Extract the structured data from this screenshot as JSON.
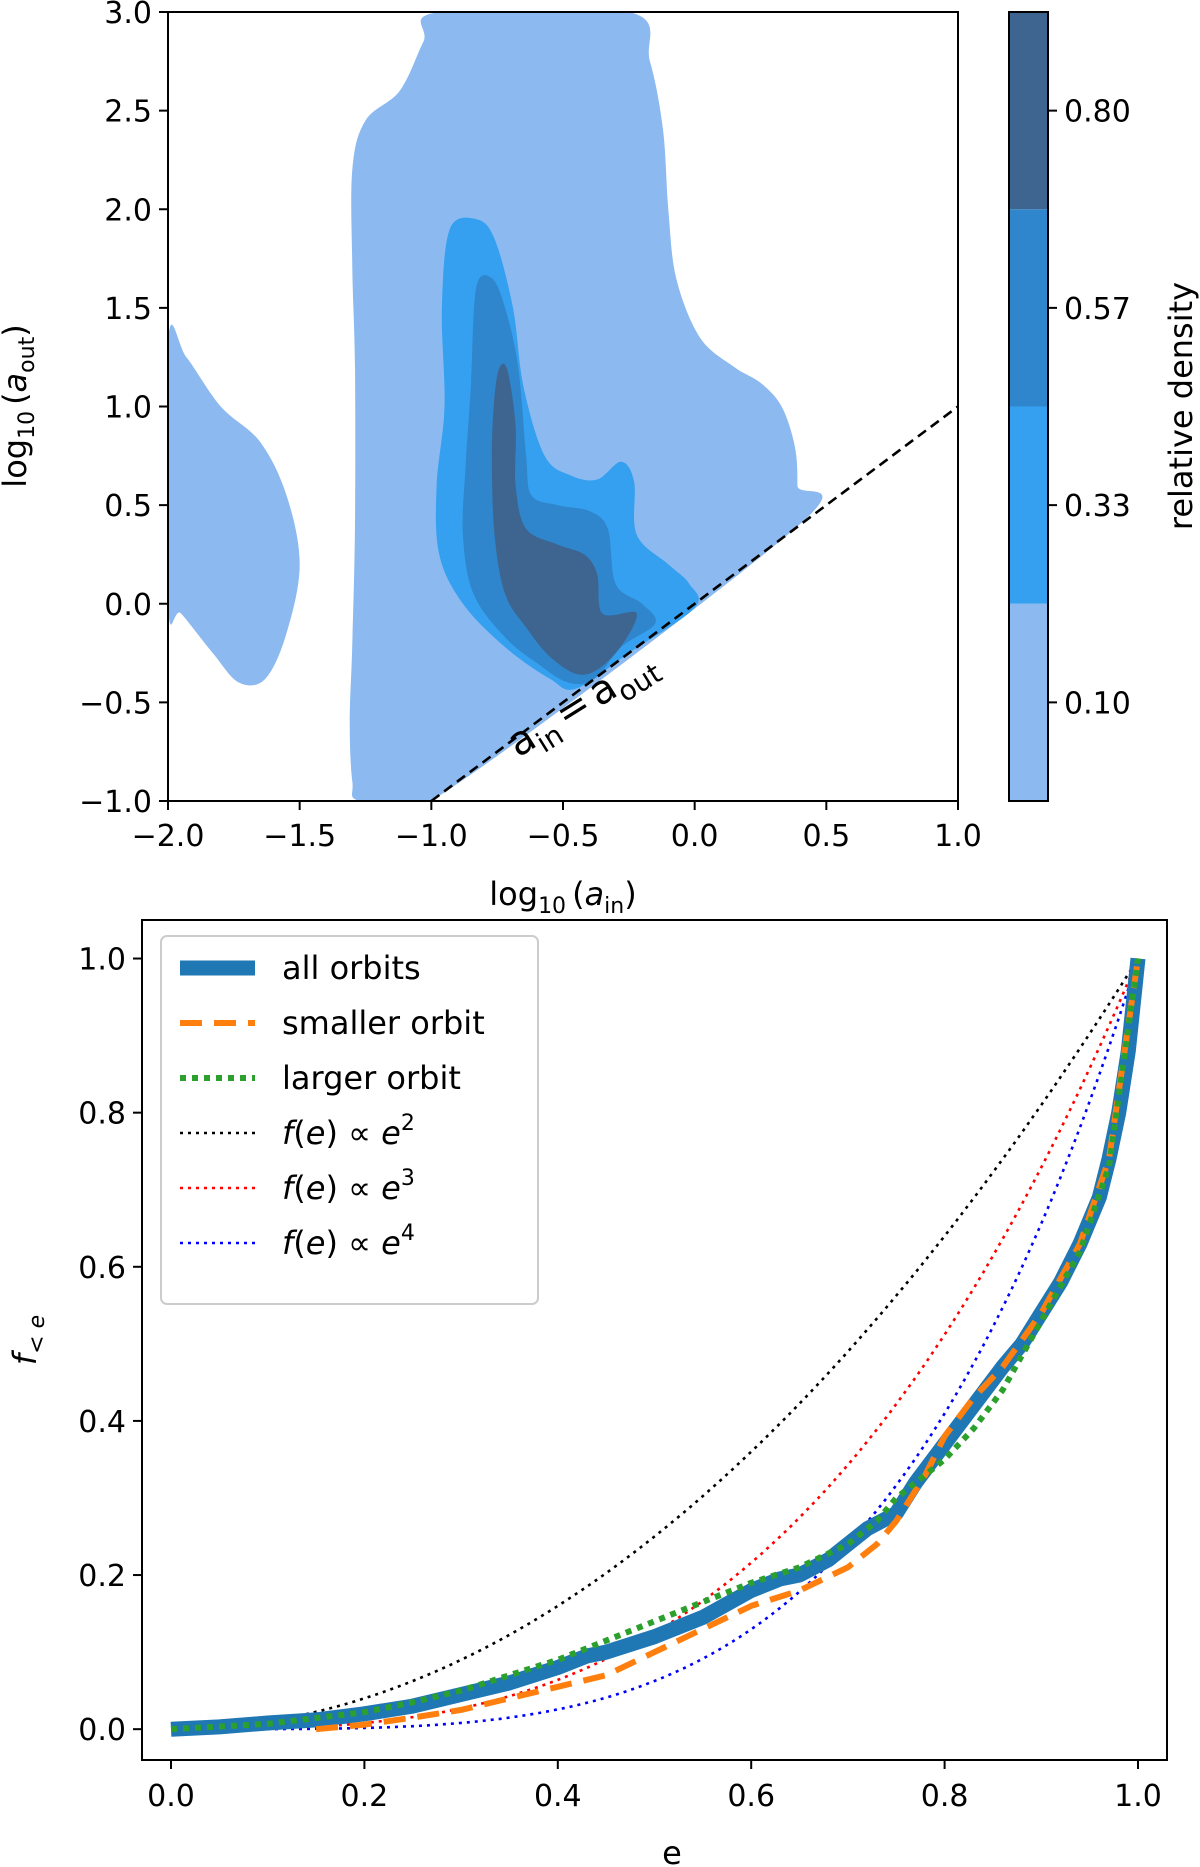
{
  "colors": {
    "level1": "#8cbaf0",
    "level2": "#35a0ef",
    "level3": "#2f86cc",
    "level4": "#3d6590",
    "all_orbits": "#1f77b4",
    "smaller_orbit": "#ff7f0e",
    "larger_orbit": "#2ca02c",
    "e2": "#000000",
    "e3": "#ff0000",
    "e4": "#0000ff"
  },
  "chart_data": [
    {
      "type": "contour",
      "xlabel_main": "log",
      "xlabel_sub": "10",
      "xlabel_arg": "a",
      "xlabel_argsub": "in",
      "ylabel_main": "log",
      "ylabel_sub": "10",
      "ylabel_arg": "a",
      "ylabel_argsub": "out",
      "xlim": [
        -2.0,
        1.0
      ],
      "ylim": [
        -1.0,
        3.0
      ],
      "x_ticks": [
        -2.0,
        -1.5,
        -1.0,
        -0.5,
        0.0,
        0.5,
        1.0
      ],
      "x_tick_labels": [
        "−2.0",
        "−1.5",
        "−1.0",
        "−0.5",
        "0.0",
        "0.5",
        "1.0"
      ],
      "y_ticks": [
        -1.0,
        -0.5,
        0.0,
        0.5,
        1.0,
        1.5,
        2.0,
        2.5,
        3.0
      ],
      "y_tick_labels": [
        "−1.0",
        "−0.5",
        "0.0",
        "0.5",
        "1.0",
        "1.5",
        "2.0",
        "2.5",
        "3.0"
      ],
      "reference_line": {
        "x": [
          -1.0,
          1.0
        ],
        "y": [
          -1.0,
          1.0
        ],
        "style": "dashed"
      },
      "annotation": {
        "a": "a",
        "in": "in",
        "eq": "=",
        "out": "out"
      },
      "colorbar": {
        "label": "relative density",
        "ticks": [
          0.1,
          0.33,
          0.57,
          0.8
        ],
        "tick_labels": [
          "0.10",
          "0.33",
          "0.57",
          "0.80"
        ]
      },
      "levels": [
        {
          "level": 1,
          "regions": [
            [
              [
                -1.27,
                -1.0
              ],
              [
                -1.0,
                -1.0
              ],
              [
                0.38,
                0.38
              ],
              [
                0.39,
                0.6
              ],
              [
                0.38,
                0.8
              ],
              [
                0.33,
                1.0
              ],
              [
                0.25,
                1.12
              ],
              [
                0.15,
                1.2
              ],
              [
                0.02,
                1.35
              ],
              [
                -0.07,
                1.65
              ],
              [
                -0.1,
                2.0
              ],
              [
                -0.12,
                2.4
              ],
              [
                -0.17,
                2.75
              ],
              [
                -0.25,
                3.0
              ],
              [
                -0.97,
                3.0
              ],
              [
                -1.03,
                2.85
              ],
              [
                -1.12,
                2.6
              ],
              [
                -1.25,
                2.45
              ],
              [
                -1.3,
                2.2
              ],
              [
                -1.3,
                1.7
              ],
              [
                -1.29,
                1.2
              ],
              [
                -1.29,
                0.4
              ],
              [
                -1.3,
                -0.2
              ],
              [
                -1.31,
                -0.6
              ],
              [
                -1.3,
                -0.9
              ]
            ],
            [
              [
                -2.0,
                1.33
              ],
              [
                -1.93,
                1.25
              ],
              [
                -1.8,
                1.0
              ],
              [
                -1.65,
                0.82
              ],
              [
                -1.55,
                0.55
              ],
              [
                -1.5,
                0.2
              ],
              [
                -1.55,
                -0.15
              ],
              [
                -1.63,
                -0.38
              ],
              [
                -1.73,
                -0.4
              ],
              [
                -1.83,
                -0.25
              ],
              [
                -1.95,
                -0.05
              ],
              [
                -2.0,
                0.0
              ]
            ]
          ]
        },
        {
          "level": 2,
          "regions": [
            [
              [
                -0.93,
                1.9
              ],
              [
                -0.83,
                1.95
              ],
              [
                -0.76,
                1.85
              ],
              [
                -0.69,
                1.5
              ],
              [
                -0.65,
                1.1
              ],
              [
                -0.57,
                0.75
              ],
              [
                -0.47,
                0.65
              ],
              [
                -0.37,
                0.63
              ],
              [
                -0.28,
                0.72
              ],
              [
                -0.23,
                0.62
              ],
              [
                -0.22,
                0.35
              ],
              [
                -0.1,
                0.2
              ],
              [
                -0.02,
                0.1
              ],
              [
                0.0,
                -0.02
              ],
              [
                -0.25,
                -0.25
              ],
              [
                -0.45,
                -0.43
              ],
              [
                -0.55,
                -0.38
              ],
              [
                -0.72,
                -0.22
              ],
              [
                -0.88,
                0.0
              ],
              [
                -0.97,
                0.25
              ],
              [
                -0.98,
                0.6
              ],
              [
                -0.95,
                1.0
              ],
              [
                -0.96,
                1.5
              ]
            ]
          ]
        },
        {
          "level": 3,
          "regions": [
            [
              [
                -0.83,
                1.6
              ],
              [
                -0.77,
                1.65
              ],
              [
                -0.72,
                1.5
              ],
              [
                -0.67,
                1.2
              ],
              [
                -0.64,
                0.75
              ],
              [
                -0.62,
                0.55
              ],
              [
                -0.52,
                0.5
              ],
              [
                -0.4,
                0.47
              ],
              [
                -0.33,
                0.38
              ],
              [
                -0.3,
                0.1
              ],
              [
                -0.2,
                0.0
              ],
              [
                -0.15,
                -0.1
              ],
              [
                -0.28,
                -0.22
              ],
              [
                -0.38,
                -0.38
              ],
              [
                -0.48,
                -0.4
              ],
              [
                -0.6,
                -0.3
              ],
              [
                -0.72,
                -0.17
              ],
              [
                -0.84,
                0.05
              ],
              [
                -0.88,
                0.35
              ],
              [
                -0.87,
                0.7
              ],
              [
                -0.85,
                1.1
              ]
            ]
          ]
        },
        {
          "level": 4,
          "regions": [
            [
              [
                -0.74,
                1.2
              ],
              [
                -0.71,
                1.18
              ],
              [
                -0.68,
                0.9
              ],
              [
                -0.68,
                0.6
              ],
              [
                -0.64,
                0.38
              ],
              [
                -0.52,
                0.3
              ],
              [
                -0.42,
                0.25
              ],
              [
                -0.37,
                0.15
              ],
              [
                -0.35,
                -0.05
              ],
              [
                -0.22,
                -0.05
              ],
              [
                -0.3,
                -0.25
              ],
              [
                -0.42,
                -0.36
              ],
              [
                -0.54,
                -0.28
              ],
              [
                -0.64,
                -0.12
              ],
              [
                -0.72,
                0.05
              ],
              [
                -0.76,
                0.35
              ],
              [
                -0.77,
                0.75
              ],
              [
                -0.76,
                1.05
              ]
            ]
          ]
        }
      ]
    },
    {
      "type": "line",
      "xlabel": "e",
      "ylabel_main": "f",
      "ylabel_sub": "< e",
      "xlim": [
        -0.03,
        1.03
      ],
      "ylim": [
        -0.04,
        1.05
      ],
      "x_ticks": [
        0.0,
        0.2,
        0.4,
        0.6,
        0.8,
        1.0
      ],
      "x_tick_labels": [
        "0.0",
        "0.2",
        "0.4",
        "0.6",
        "0.8",
        "1.0"
      ],
      "y_ticks": [
        0.0,
        0.2,
        0.4,
        0.6,
        0.8,
        1.0
      ],
      "y_tick_labels": [
        "0.0",
        "0.2",
        "0.4",
        "0.6",
        "0.8",
        "1.0"
      ],
      "legend_position": "upper-left",
      "series": [
        {
          "name": "all orbits",
          "style": "solid-thick",
          "x": [
            0.0,
            0.05,
            0.1,
            0.15,
            0.2,
            0.25,
            0.3,
            0.35,
            0.4,
            0.43,
            0.45,
            0.5,
            0.55,
            0.6,
            0.63,
            0.65,
            0.68,
            0.7,
            0.72,
            0.75,
            0.77,
            0.8,
            0.83,
            0.86,
            0.88,
            0.9,
            0.92,
            0.94,
            0.96,
            0.97,
            0.98,
            0.99,
            1.0
          ],
          "y": [
            0.0,
            0.003,
            0.008,
            0.012,
            0.02,
            0.03,
            0.045,
            0.06,
            0.08,
            0.095,
            0.1,
            0.12,
            0.145,
            0.18,
            0.195,
            0.2,
            0.22,
            0.24,
            0.26,
            0.28,
            0.32,
            0.37,
            0.42,
            0.47,
            0.5,
            0.54,
            0.58,
            0.63,
            0.69,
            0.74,
            0.8,
            0.88,
            1.0
          ]
        },
        {
          "name": "smaller orbit",
          "style": "dashed",
          "x": [
            0.15,
            0.2,
            0.25,
            0.3,
            0.35,
            0.4,
            0.45,
            0.5,
            0.55,
            0.6,
            0.65,
            0.7,
            0.73,
            0.75,
            0.78,
            0.8,
            0.83,
            0.86,
            0.9,
            0.94,
            0.97,
            1.0
          ],
          "y": [
            0.0,
            0.006,
            0.015,
            0.025,
            0.04,
            0.055,
            0.07,
            0.1,
            0.13,
            0.16,
            0.18,
            0.21,
            0.24,
            0.27,
            0.33,
            0.38,
            0.43,
            0.47,
            0.54,
            0.63,
            0.74,
            1.0
          ]
        },
        {
          "name": "larger orbit",
          "style": "dotted-thick",
          "x": [
            0.0,
            0.1,
            0.2,
            0.25,
            0.3,
            0.35,
            0.4,
            0.45,
            0.5,
            0.55,
            0.6,
            0.65,
            0.7,
            0.73,
            0.75,
            0.78,
            0.8,
            0.83,
            0.86,
            0.9,
            0.94,
            0.97,
            1.0
          ],
          "y": [
            0.0,
            0.007,
            0.022,
            0.035,
            0.05,
            0.07,
            0.09,
            0.115,
            0.14,
            0.165,
            0.19,
            0.21,
            0.24,
            0.27,
            0.3,
            0.33,
            0.35,
            0.39,
            0.44,
            0.53,
            0.62,
            0.73,
            1.0
          ]
        },
        {
          "name": "f(e) ∝ e",
          "power": 2,
          "style": "dotted-thin"
        },
        {
          "name": "f(e) ∝ e",
          "power": 3,
          "style": "dotted-thin"
        },
        {
          "name": "f(e) ∝ e",
          "power": 4,
          "style": "dotted-thin"
        }
      ]
    }
  ]
}
